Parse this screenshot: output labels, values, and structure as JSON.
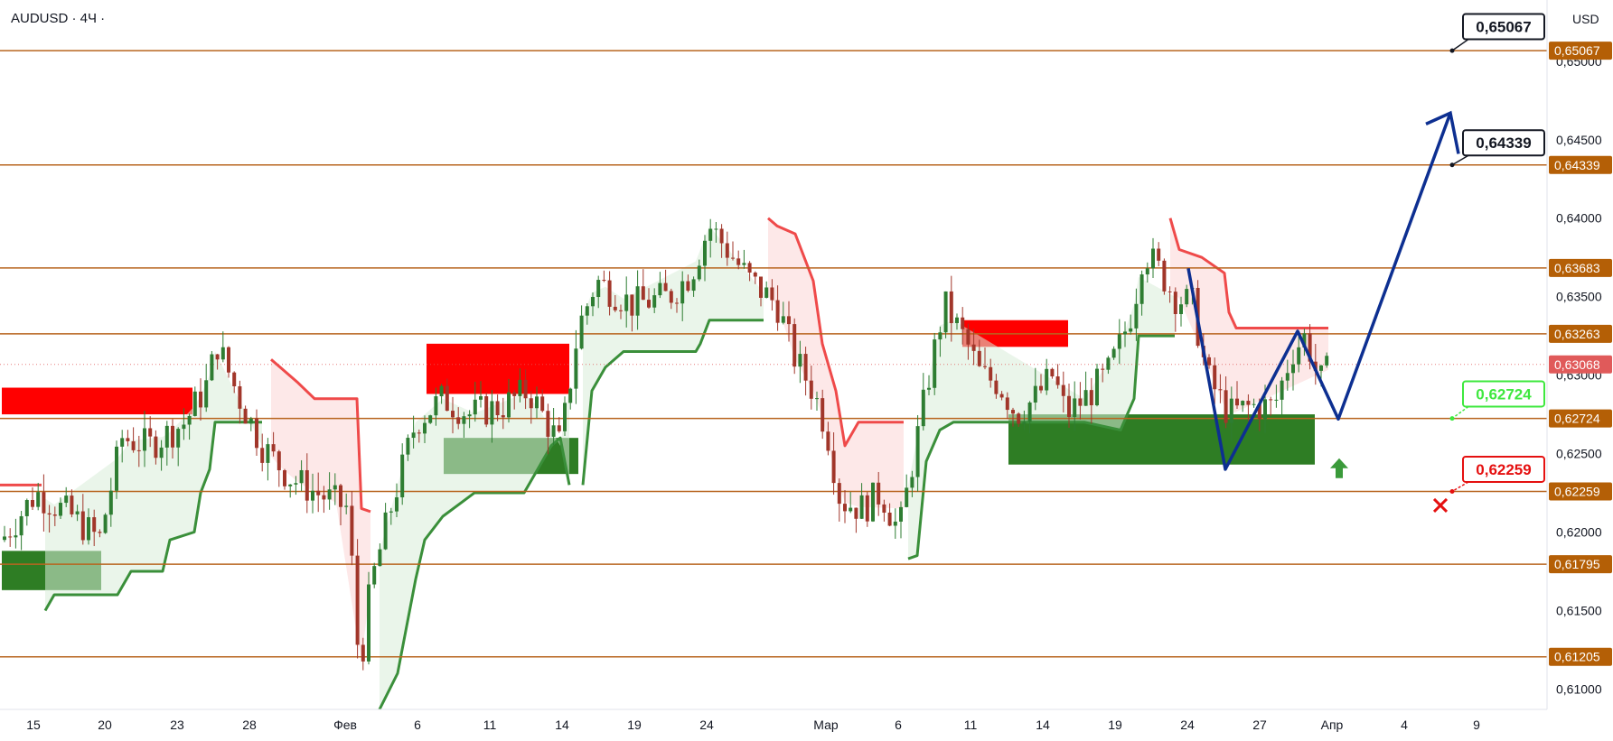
{
  "header": {
    "symbol": "AUDUSD · 4Ч ·"
  },
  "chart_data": {
    "type": "candlestick",
    "currency": "USD",
    "price_scale": {
      "min": 0.6087,
      "max": 0.6539
    },
    "y_ticks": [
      "0,65000",
      "0,64500",
      "0,64000",
      "0,63500",
      "0,63000",
      "0,62500",
      "0,62000",
      "0,61500",
      "0,61000"
    ],
    "x_ticks": [
      "15",
      "20",
      "23",
      "28",
      "Фев",
      "6",
      "11",
      "14",
      "19",
      "24",
      "Мар",
      "6",
      "11",
      "14",
      "19",
      "24",
      "27",
      "Апр",
      "4",
      "9"
    ],
    "current_price": "0,63068",
    "levels": [
      "0,65067",
      "0,64339",
      "0,63683",
      "0,63263",
      "0,62724",
      "0,62259",
      "0,61795",
      "0,61205"
    ],
    "callouts": [
      {
        "text": "0,65067",
        "style": "target-black"
      },
      {
        "text": "0,64339",
        "style": "target-black"
      },
      {
        "text": "0,62724",
        "style": "entry-green"
      },
      {
        "text": "0,62259",
        "style": "stop-red"
      }
    ],
    "colors": {
      "level_line": "#b8651f",
      "level_tag": "#b45f06",
      "current_tag": "#e05a5a",
      "bull_candle": "#2e7d32",
      "bear_candle": "#a1362a",
      "supertrend_up": "#3a8f3a",
      "supertrend_down": "#ef4a4a",
      "resistance_zone": "#ff0000",
      "support_zone": "#2e7d24",
      "forecast_path": "#0d2f91",
      "entry_arrow": "#3a9a3a",
      "stop_cross": "#e51010"
    }
  }
}
